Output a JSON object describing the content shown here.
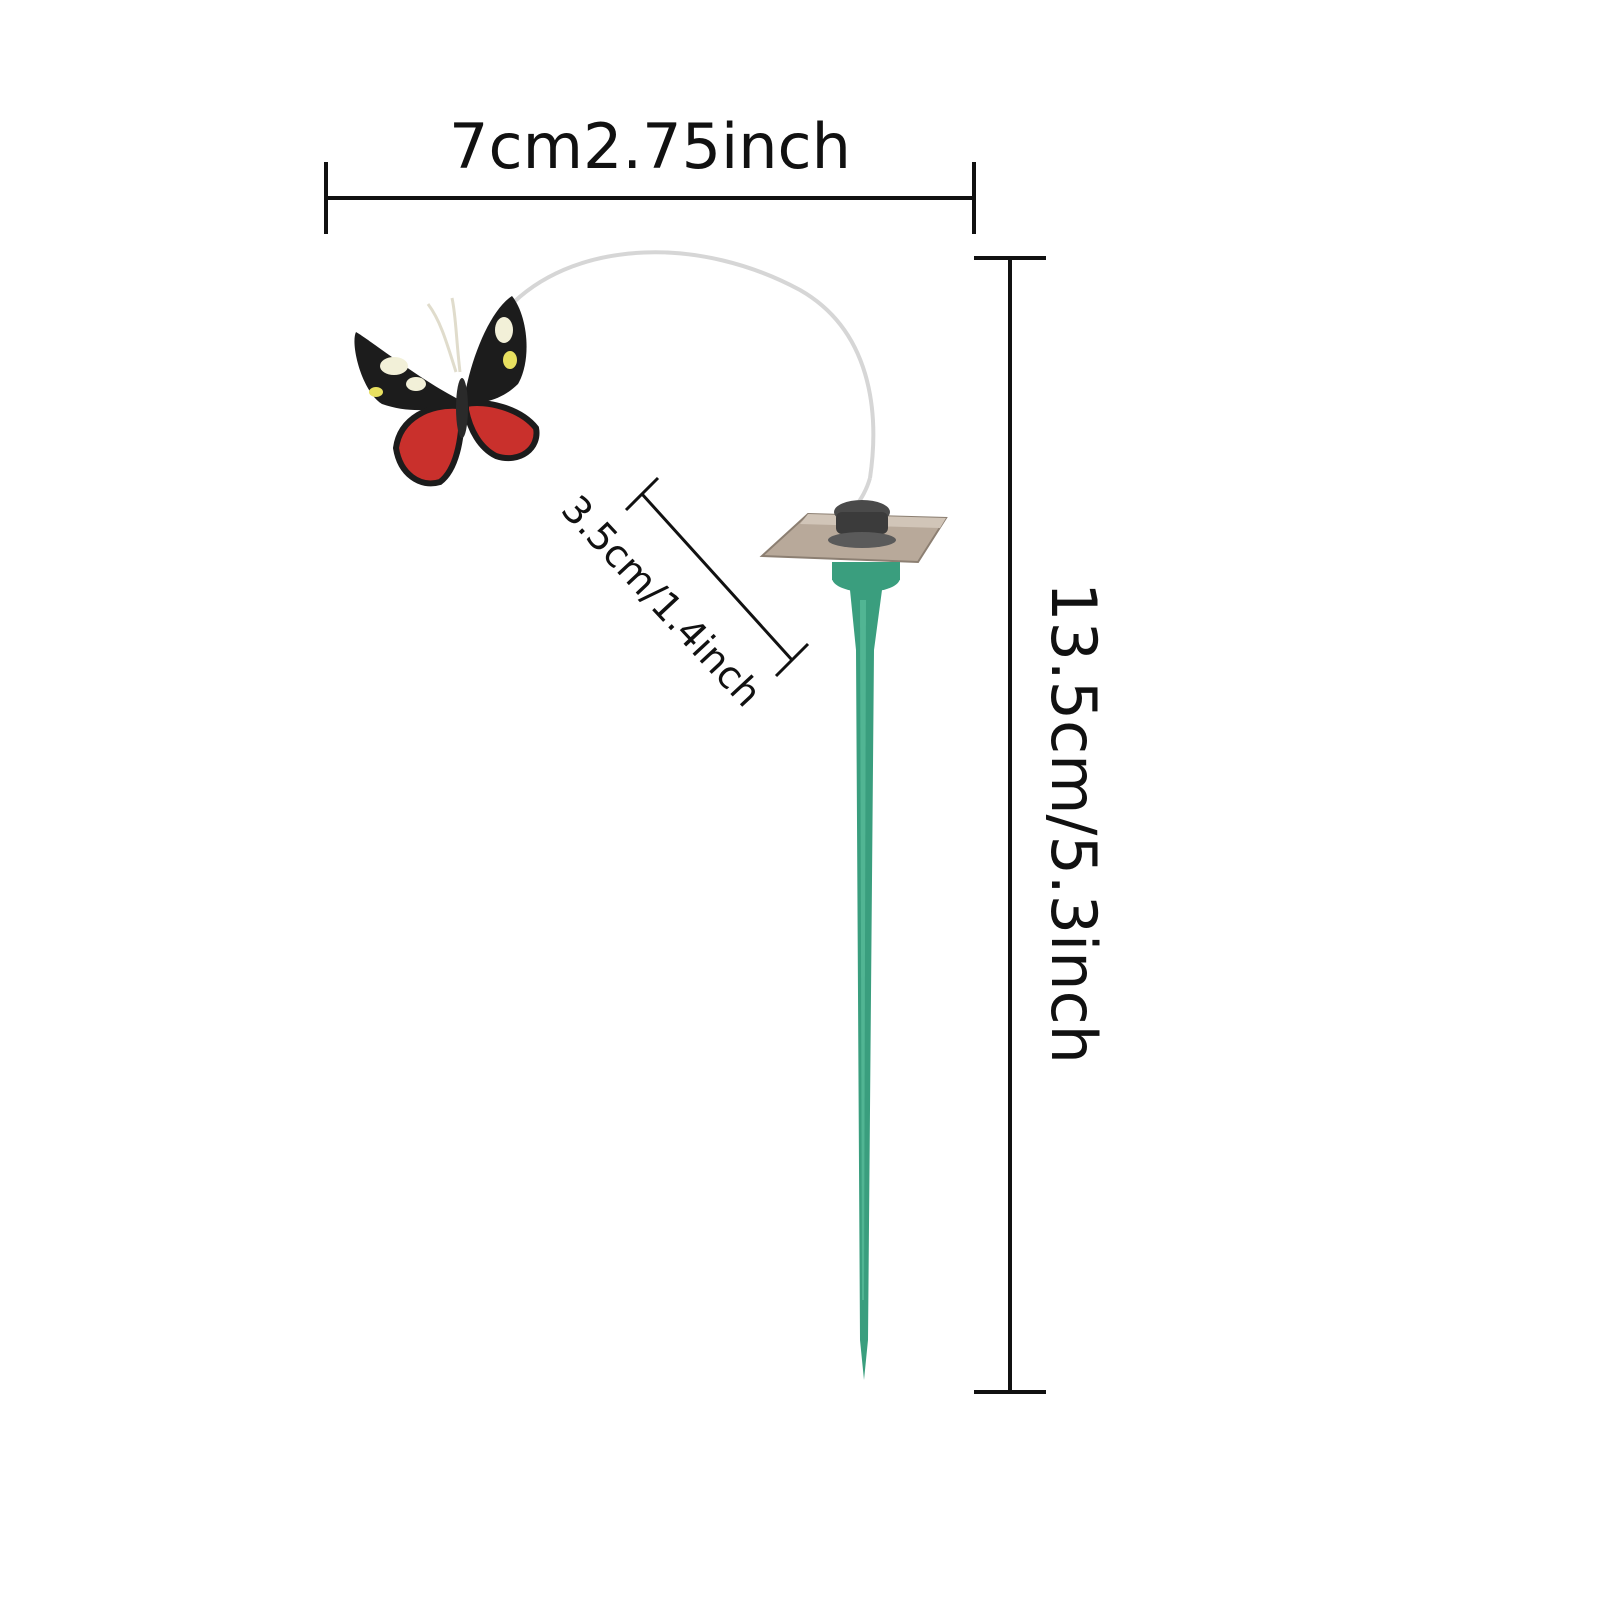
{
  "dimensions": {
    "width_label": "7cm2.75inch",
    "wire_label": "3.5cm/1.4inch",
    "height_label": "13.5cm/5.3inch"
  },
  "colors": {
    "background": "#ffffff",
    "dimension_line": "#111111",
    "stake_green": "#3a9e7e",
    "solar_panel": "#b8a99a",
    "wing_red": "#c9302c",
    "wing_black": "#1c1c1c"
  },
  "icons": {
    "product": "solar-butterfly-stake-icon"
  }
}
